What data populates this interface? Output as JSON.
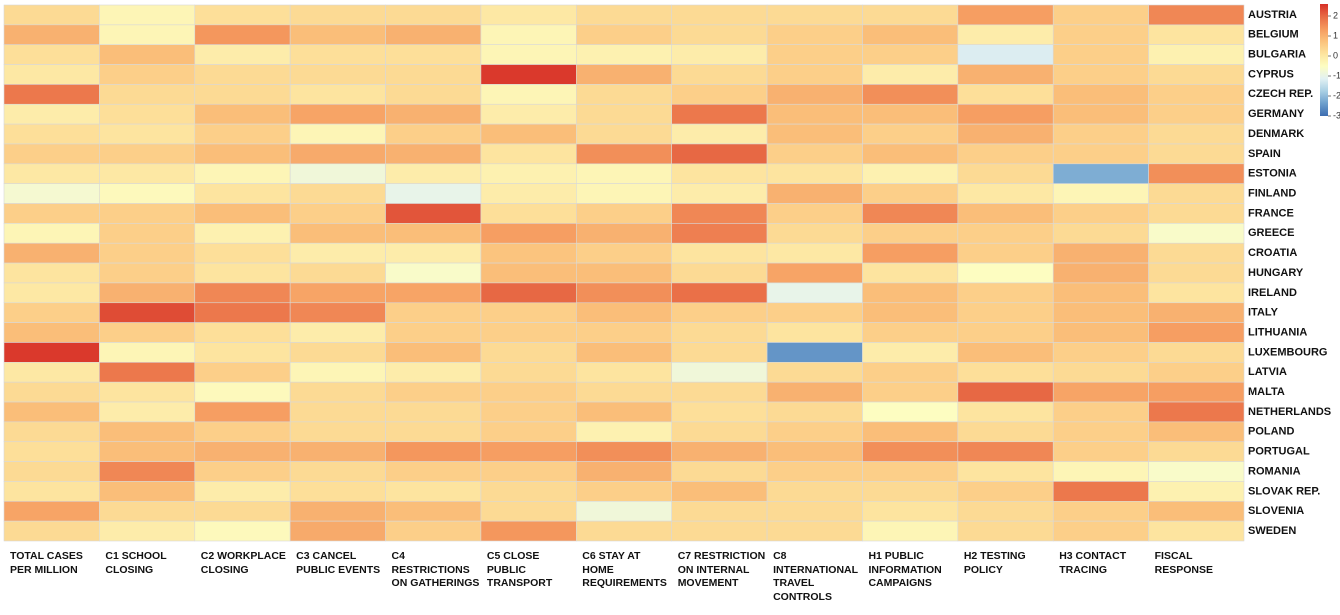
{
  "chart_data": {
    "type": "heatmap",
    "columns": [
      "TOTAL CASES PER MILLION",
      "C1 SCHOOL CLOSING",
      "C2 WORKPLACE CLOSING",
      "C3 CANCEL PUBLIC EVENTS",
      "C4 RESTRICTIONS ON GATHERINGS",
      "C5 CLOSE PUBLIC TRANSPORT",
      "C6 STAY AT HOME REQUIREMENTS",
      "C7 RESTRICTION ON INTERNAL MOVEMENT",
      "C8 INTERNATIONAL TRAVEL CONTROLS",
      "H1 PUBLIC INFORMATION CAMPAIGNS",
      "H2 TESTING POLICY",
      "H3 CONTACT TRACING",
      "FISCAL RESPONSE"
    ],
    "rows": [
      "AUSTRIA",
      "BELGIUM",
      "BULGARIA",
      "CYPRUS",
      "CZECH REP.",
      "GERMANY",
      "DENMARK",
      "SPAIN",
      "ESTONIA",
      "FINLAND",
      "FRANCE",
      "GREECE",
      "CROATIA",
      "HUNGARY",
      "IRELAND",
      "ITALY",
      "LITHUANIA",
      "LUXEMBOURG",
      "LATVIA",
      "MALTA",
      "NETHERLANDS",
      "POLAND",
      "PORTUGAL",
      "ROMANIA",
      "SLOVAK REP.",
      "SLOVENIA",
      "SWEDEN"
    ],
    "values": [
      [
        0.3,
        -0.3,
        0.2,
        0.3,
        0.3,
        0,
        0.3,
        0.3,
        0.3,
        0.3,
        1.3,
        0.5,
        1.6
      ],
      [
        1.0,
        -0.3,
        1.4,
        0.8,
        1.0,
        -0.3,
        0.5,
        0.3,
        0.5,
        0.8,
        -0.1,
        0.5,
        0.1
      ],
      [
        0.2,
        0.8,
        -0.1,
        0.2,
        0.2,
        -0.3,
        -0.2,
        -0.1,
        0.5,
        0.5,
        -1.2,
        0.5,
        -0.2
      ],
      [
        0,
        0.5,
        0.3,
        0.3,
        0.3,
        2.5,
        1.0,
        0.3,
        0.5,
        -0.1,
        1.0,
        0.5,
        0.3
      ],
      [
        1.8,
        0.3,
        0.3,
        0.1,
        0.3,
        -0.3,
        0.3,
        0.5,
        1.0,
        1.5,
        0.2,
        0.8,
        0.5
      ],
      [
        -0.1,
        0.2,
        0.8,
        1.2,
        1.0,
        -0.1,
        0.3,
        1.8,
        0.8,
        0.8,
        1.3,
        0.8,
        0.5
      ],
      [
        0.2,
        0.1,
        0.5,
        -0.3,
        0.5,
        0.8,
        0.3,
        -0.1,
        0.8,
        0.5,
        1.0,
        0.5,
        0.3
      ],
      [
        0.5,
        0.5,
        0.8,
        1.1,
        1.0,
        0.1,
        1.5,
        2.0,
        0.5,
        0.8,
        0.5,
        0.5,
        0.3
      ],
      [
        0,
        0,
        -0.3,
        -0.8,
        -0.1,
        -0.2,
        -0.3,
        0.1,
        0.1,
        -0.2,
        0.3,
        -2.2,
        1.5
      ],
      [
        -0.7,
        -0.4,
        0.1,
        0.3,
        -1.0,
        -0.1,
        -0.3,
        -0.1,
        1.0,
        0.5,
        0,
        -0.3,
        0.3
      ],
      [
        0.5,
        0.5,
        0.8,
        0.5,
        2.2,
        0.2,
        0.5,
        1.6,
        0.5,
        1.6,
        0.8,
        0.5,
        0.3
      ],
      [
        -0.3,
        0.5,
        -0.2,
        0.8,
        0.8,
        1.3,
        1.0,
        1.7,
        0.3,
        0.5,
        0.5,
        0.3,
        -0.6
      ],
      [
        1.0,
        0.5,
        0.2,
        -0.1,
        -0.1,
        0.7,
        0.5,
        0.1,
        0,
        1.3,
        0.5,
        1.0,
        0.3
      ],
      [
        0.1,
        0.5,
        0.1,
        0.3,
        -0.6,
        0.8,
        0.8,
        0.3,
        1.2,
        0.1,
        -0.5,
        1.0,
        0.3
      ],
      [
        0,
        1.0,
        1.6,
        1.2,
        1.2,
        2.0,
        1.5,
        1.9,
        -1.0,
        0.8,
        0.5,
        0.8,
        0.1
      ],
      [
        0.5,
        2.3,
        1.8,
        1.6,
        0.5,
        0.5,
        0.8,
        0.5,
        0.5,
        0.8,
        0.5,
        0.8,
        1.0
      ],
      [
        0.8,
        0.5,
        0.2,
        -0.1,
        0.5,
        0.5,
        0.5,
        0.3,
        0.1,
        0.5,
        0.5,
        0.8,
        1.3
      ],
      [
        2.5,
        -0.3,
        0.1,
        0.3,
        0.8,
        0.3,
        0.8,
        0.3,
        -2.5,
        -0.1,
        0.8,
        0.5,
        0.3
      ],
      [
        0,
        1.8,
        0.5,
        -0.3,
        -0.1,
        0.3,
        0.1,
        -0.8,
        0.3,
        0.5,
        0.2,
        0.3,
        0.5
      ],
      [
        0.3,
        0.1,
        -0.4,
        0.3,
        0.5,
        0.5,
        0.3,
        0.3,
        1.0,
        0.5,
        2.0,
        1.2,
        1.3
      ],
      [
        0.8,
        -0.1,
        1.3,
        0.3,
        0.3,
        0.5,
        0.8,
        0.2,
        0.3,
        -0.5,
        0.1,
        0.5,
        1.8
      ],
      [
        0.3,
        0.8,
        0.5,
        0.3,
        0.3,
        0.5,
        -0.2,
        0.3,
        0.5,
        0.8,
        0.3,
        0.5,
        0.8
      ],
      [
        0.2,
        0.8,
        1.0,
        1.0,
        1.4,
        1.3,
        1.5,
        1.0,
        0.8,
        1.5,
        1.6,
        0.5,
        0.3
      ],
      [
        0.3,
        1.6,
        0.5,
        0.3,
        0.5,
        0.5,
        1.0,
        0.3,
        0.5,
        0.5,
        0.1,
        -0.3,
        -0.6
      ],
      [
        0.1,
        0.8,
        -0.1,
        0.2,
        0.1,
        0.3,
        0.5,
        0.8,
        0.3,
        0.3,
        0.5,
        1.8,
        -0.2
      ],
      [
        1.2,
        0.3,
        0.3,
        1.0,
        0.8,
        0.3,
        -0.8,
        0.3,
        0.3,
        0.1,
        0.3,
        0.5,
        0.8
      ],
      [
        0.3,
        -0.1,
        -0.4,
        1.1,
        0.5,
        1.4,
        0.3,
        0.3,
        0.3,
        -0.3,
        0.3,
        0.5,
        0.1
      ]
    ],
    "colorscale": [
      "#3d6db0",
      "#6d9fcc",
      "#a9cfe4",
      "#e2f1f3",
      "#fdfdc2",
      "#fde49e",
      "#fbc27c",
      "#f59a5f",
      "#e86a45",
      "#d73027"
    ],
    "clim": [
      -3,
      2.6
    ],
    "cticks": [
      2,
      1,
      0,
      -1,
      -2,
      -3
    ]
  }
}
